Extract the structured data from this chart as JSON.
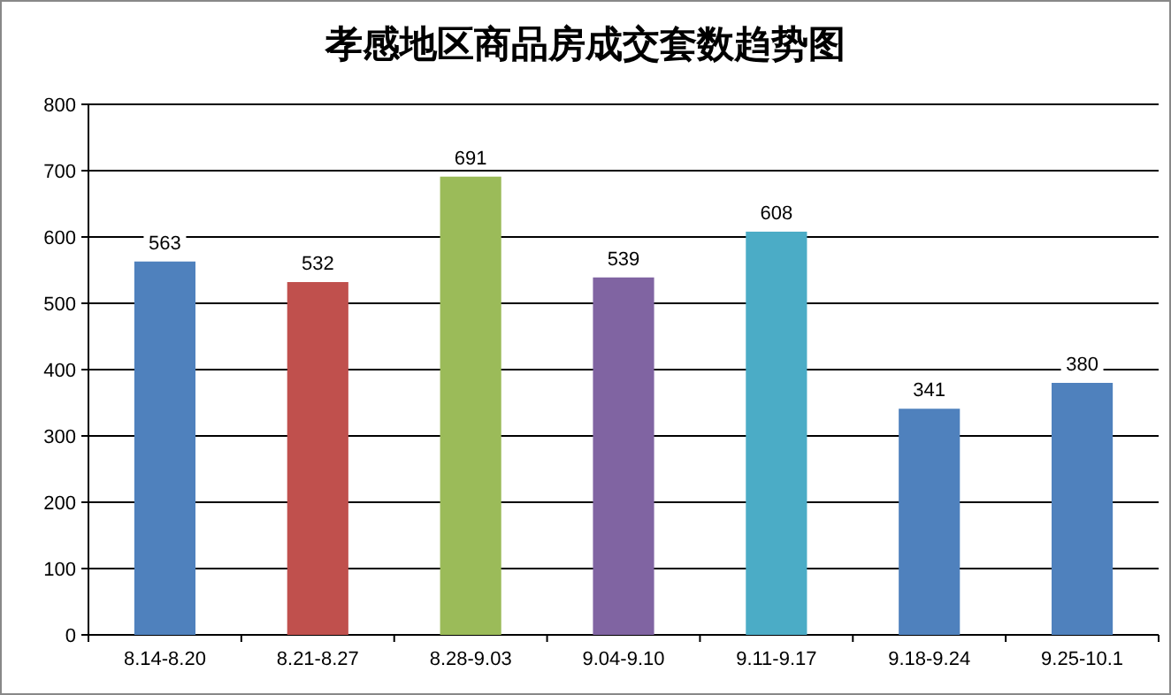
{
  "chart_data": {
    "type": "bar",
    "title": "孝感地区商品房成交套数趋势图",
    "categories": [
      "8.14-8.20",
      "8.21-8.27",
      "8.28-9.03",
      "9.04-9.10",
      "9.11-9.17",
      "9.18-9.24",
      "9.25-10.1"
    ],
    "values": [
      563,
      532,
      691,
      539,
      608,
      341,
      380
    ],
    "colors": [
      "#4f81bd",
      "#c0504d",
      "#9bbb59",
      "#8064a2",
      "#4bacc6",
      "#4f81bd",
      "#4f81bd"
    ],
    "ylim": [
      0,
      800
    ],
    "yticks": [
      0,
      100,
      200,
      300,
      400,
      500,
      600,
      700,
      800
    ],
    "grid": "y",
    "data_labels": true
  }
}
